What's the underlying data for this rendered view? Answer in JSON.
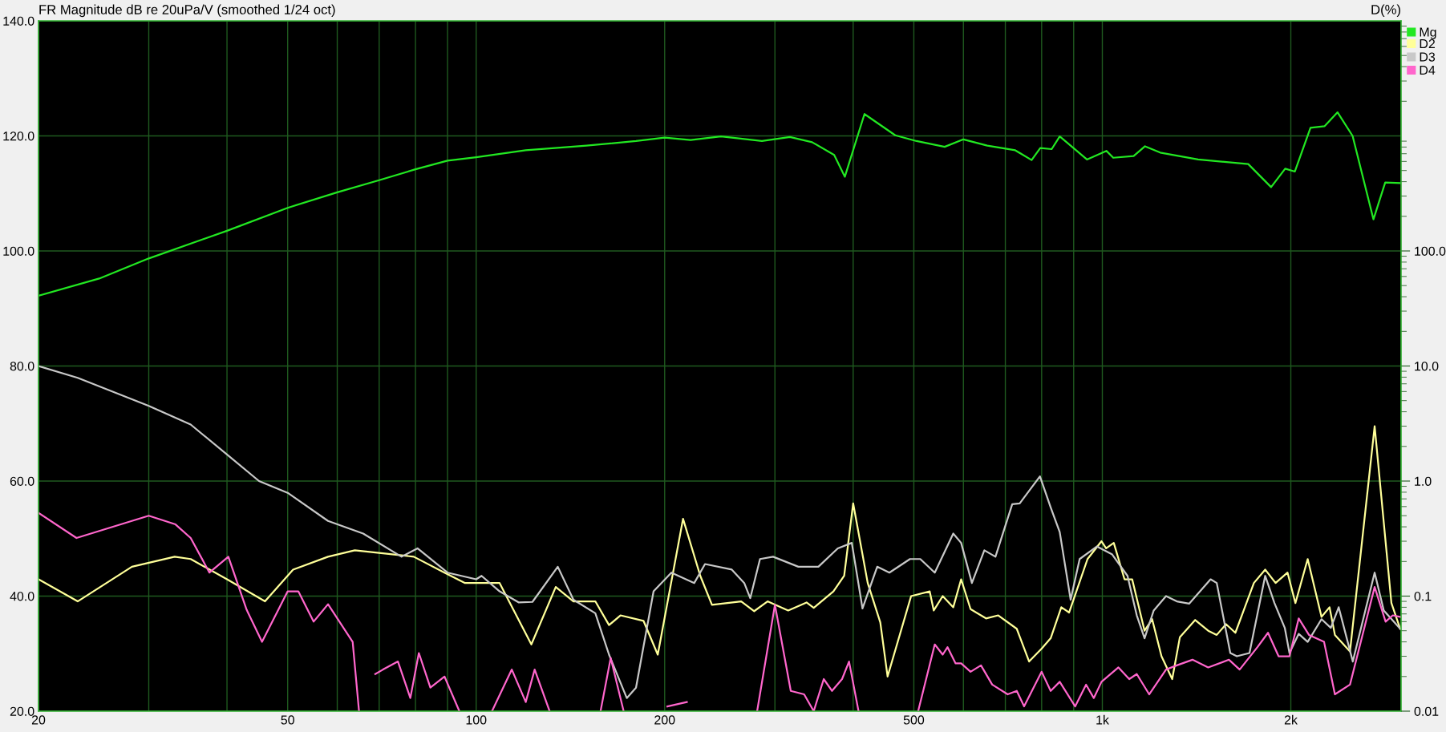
{
  "chart_data": [
    {
      "type": "line",
      "title": "FR Magnitude dB re 20uPa/V (smoothed 1/24 oct)",
      "log": "x",
      "grid": true,
      "legend": "top right",
      "line_style": "solid",
      "marker": "none",
      "xlim": [
        20,
        3000
      ],
      "xticks": [
        20,
        {
          "value": 30,
          "label": null
        },
        {
          "value": 40,
          "label": null
        },
        50,
        {
          "value": 60,
          "label": null
        },
        {
          "value": 70,
          "label": null
        },
        {
          "value": 80,
          "label": null
        },
        {
          "value": 90,
          "label": null
        },
        100,
        200,
        {
          "value": 300,
          "label": null
        },
        {
          "value": 400,
          "label": null
        },
        500,
        {
          "value": 600,
          "label": null
        },
        {
          "value": 700,
          "label": null
        },
        {
          "value": 800,
          "label": null
        },
        {
          "value": 900,
          "label": null
        },
        {
          "value": 1000,
          "label": "1k"
        },
        {
          "value": 2000,
          "label": "2k"
        },
        {
          "value": 3000,
          "label": null
        }
      ],
      "ylim": [
        20,
        140
      ],
      "yticks": [
        {
          "value": 20,
          "label": "20.0"
        },
        {
          "value": 40,
          "label": "40.0"
        },
        {
          "value": 60,
          "label": "60.0"
        },
        {
          "value": 80,
          "label": "80.0"
        },
        {
          "value": 100,
          "label": "100.0"
        },
        {
          "value": 120,
          "label": "120.0"
        },
        {
          "value": 140,
          "label": "140.0"
        }
      ],
      "series": [
        {
          "name": "Mg",
          "color": "#22e822",
          "x": [
            20,
            25,
            30,
            40,
            50,
            60,
            70,
            80,
            90,
            100,
            120,
            150,
            180,
            200,
            220,
            246,
            286,
            317,
            344,
            373,
            388,
            417,
            467,
            505,
            560,
            600,
            655,
            726,
            771,
            796,
            830,
            855,
            945,
            1015,
            1041,
            1122,
            1170,
            1237,
            1422,
            1710,
            1860,
            1959,
            2030,
            2150,
            2265,
            2375,
            2510,
            2710,
            2830,
            2990
          ],
          "values": [
            92.2,
            95.2,
            98.7,
            103.5,
            107.5,
            110.2,
            112.3,
            114.2,
            115.7,
            116.3,
            117.5,
            118.3,
            119.1,
            119.7,
            119.3,
            119.9,
            119.1,
            119.8,
            118.9,
            116.7,
            112.9,
            123.8,
            120.1,
            119.1,
            118.1,
            119.4,
            118.3,
            117.5,
            115.8,
            117.9,
            117.7,
            119.9,
            115.9,
            117.4,
            116.2,
            116.5,
            118.2,
            117.1,
            115.9,
            115.1,
            111.1,
            114.3,
            113.8,
            121.4,
            121.7,
            124.1,
            120,
            105.5,
            111.9,
            111.8
          ]
        }
      ]
    },
    {
      "type": "line",
      "ylabel": "D(%)",
      "log": "xy",
      "legend": "top right",
      "line_style": "solid",
      "marker": "none",
      "tick_labels": "y",
      "xlim": [
        20,
        3000
      ],
      "ylim": [
        0.01,
        10000
      ],
      "yticks": [
        0.01,
        0.1,
        {
          "value": 1,
          "label": "1.0"
        },
        {
          "value": 10,
          "label": "10.0"
        },
        {
          "value": 100,
          "label": "100.0"
        }
      ],
      "series": [
        {
          "name": "D2",
          "color": "#ffff99",
          "x": [
            20,
            23.1,
            28.2,
            33,
            35,
            40,
            46,
            51,
            58,
            64,
            79.5,
            89,
            96,
            102,
            109,
            122.5,
            134,
            143,
            155,
            163,
            170,
            185,
            195,
            214,
            228,
            238,
            265,
            278,
            292,
            315,
            337,
            346,
            372,
            387,
            400,
            422,
            442,
            454,
            495,
            530,
            538,
            556,
            578,
            595,
            616,
            652,
            682,
            730,
            764,
            800,
            827,
            860,
            885,
            947,
            997,
            1014,
            1043,
            1085,
            1116,
            1168,
            1201,
            1243,
            1293,
            1330,
            1407,
            1476,
            1523,
            1576,
            1631,
            1746,
            1820,
            1891,
            1976,
            2034,
            2128,
            2239,
            2306,
            2352,
            2486,
            2722,
            2895,
            2990
          ],
          "values": [
            0.14,
            0.09,
            0.18,
            0.22,
            0.21,
            0.14,
            0.09,
            0.17,
            0.22,
            0.25,
            0.22,
            0.16,
            0.13,
            0.13,
            0.13,
            0.038,
            0.12,
            0.09,
            0.09,
            0.056,
            0.068,
            0.061,
            0.031,
            0.47,
            0.15,
            0.084,
            0.09,
            0.074,
            0.09,
            0.075,
            0.088,
            0.079,
            0.11,
            0.15,
            0.64,
            0.13,
            0.059,
            0.02,
            0.1,
            0.11,
            0.075,
            0.1,
            0.08,
            0.14,
            0.077,
            0.064,
            0.068,
            0.052,
            0.027,
            0.035,
            0.043,
            0.08,
            0.072,
            0.21,
            0.3,
            0.26,
            0.29,
            0.14,
            0.14,
            0.05,
            0.063,
            0.03,
            0.019,
            0.044,
            0.062,
            0.05,
            0.046,
            0.057,
            0.048,
            0.13,
            0.17,
            0.13,
            0.16,
            0.087,
            0.21,
            0.066,
            0.08,
            0.046,
            0.033,
            3,
            0.087,
            0.052
          ]
        },
        {
          "name": "D3",
          "color": "#c8c8c8",
          "x": [
            20,
            23.1,
            30,
            35,
            40,
            45,
            50,
            58,
            66,
            76,
            80.6,
            90,
            100,
            102,
            109,
            117,
            123,
            135,
            143,
            155,
            163,
            174,
            180,
            192,
            205,
            223,
            232,
            256,
            268,
            274,
            284,
            298,
            327,
            352,
            378,
            398,
            414,
            437,
            457,
            493,
            512,
            540,
            578,
            595,
            619,
            648,
            675,
            718,
            738,
            795,
            827,
            855,
            890,
            920,
            980,
            1037,
            1097,
            1135,
            1168,
            1208,
            1264,
            1315,
            1376,
            1489,
            1523,
            1601,
            1640,
            1718,
            1820,
            1883,
            1956,
            1990,
            2059,
            2128,
            2239,
            2317,
            2385,
            2512,
            2722,
            2815,
            2990
          ],
          "values": [
            10,
            7.9,
            4.5,
            3.1,
            1.7,
            1,
            0.79,
            0.45,
            0.35,
            0.22,
            0.26,
            0.16,
            0.14,
            0.15,
            0.11,
            0.088,
            0.089,
            0.18,
            0.093,
            0.071,
            0.031,
            0.013,
            0.016,
            0.11,
            0.16,
            0.13,
            0.19,
            0.17,
            0.13,
            0.096,
            0.21,
            0.22,
            0.18,
            0.18,
            0.26,
            0.29,
            0.078,
            0.18,
            0.16,
            0.21,
            0.21,
            0.16,
            0.35,
            0.29,
            0.13,
            0.25,
            0.22,
            0.63,
            0.64,
            1.1,
            0.59,
            0.36,
            0.093,
            0.21,
            0.27,
            0.23,
            0.15,
            0.068,
            0.043,
            0.075,
            0.1,
            0.09,
            0.086,
            0.14,
            0.13,
            0.032,
            0.03,
            0.032,
            0.15,
            0.087,
            0.053,
            0.032,
            0.047,
            0.04,
            0.063,
            0.053,
            0.08,
            0.027,
            0.16,
            0.075,
            0.052
          ]
        },
        {
          "name": "D4",
          "color": "#ff66cc",
          "x": [
            20,
            23,
            30,
            33.1,
            35,
            37.5,
            40.2,
            43,
            45.5,
            50,
            52,
            55,
            58,
            63.5,
            65,
            67,
            69,
            71,
            75,
            78.5,
            81,
            84.5,
            89,
            94,
            100,
            106,
            114,
            120,
            124,
            131,
            136,
            158,
            164,
            172,
            180,
            202,
            217,
            225,
            281,
            300,
            318,
            334,
            346,
            359,
            370,
            384,
            394,
            408,
            420,
            508,
            540,
            556,
            566,
            583,
            595,
            616,
            640,
            667,
            706,
            730,
            750,
            800,
            827,
            855,
            905,
            942,
            969,
            997,
            1061,
            1104,
            1135,
            1188,
            1264,
            1315,
            1393,
            1476,
            1593,
            1657,
            1769,
            1839,
            1912,
            1990,
            2059,
            2138,
            2260,
            2352,
            2486,
            2722,
            2834,
            2910,
            2990
          ],
          "values": [
            0.53,
            0.32,
            0.5,
            0.42,
            0.32,
            0.16,
            0.22,
            0.076,
            0.04,
            0.11,
            0.11,
            0.06,
            0.085,
            0.04,
            0.01,
            null,
            0.021,
            0.023,
            0.027,
            0.013,
            0.032,
            0.016,
            0.02,
            0.01,
            null,
            0.01,
            0.023,
            0.012,
            0.023,
            0.01,
            null,
            0.01,
            0.029,
            0.01,
            null,
            0.011,
            0.012,
            null,
            0.01,
            0.084,
            0.015,
            0.014,
            0.01,
            0.019,
            0.015,
            0.019,
            0.027,
            0.01,
            null,
            0.01,
            0.038,
            0.031,
            0.036,
            0.026,
            0.026,
            0.022,
            0.025,
            0.017,
            0.014,
            0.015,
            0.011,
            0.022,
            0.015,
            0.018,
            0.011,
            0.017,
            0.013,
            0.018,
            0.024,
            0.019,
            0.021,
            0.014,
            0.023,
            0.025,
            0.028,
            0.024,
            0.028,
            0.023,
            0.036,
            0.048,
            0.03,
            0.03,
            0.064,
            0.046,
            0.04,
            0.014,
            0.017,
            0.12,
            0.06,
            0.068,
            0.066
          ]
        }
      ]
    }
  ]
}
